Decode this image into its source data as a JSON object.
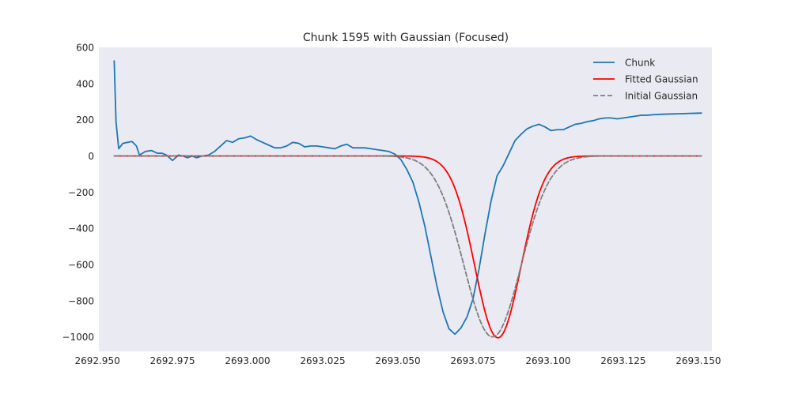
{
  "chart_data": {
    "type": "line",
    "title": "Chunk 1595 with Gaussian (Focused)",
    "xlabel": "",
    "ylabel": "",
    "xlim": [
      2692.9505,
      2693.1545
    ],
    "ylim": [
      -1080,
      600
    ],
    "xticks": [
      2692.95,
      2692.975,
      2693.0,
      2693.025,
      2693.05,
      2693.075,
      2693.1,
      2693.125,
      2693.15
    ],
    "xtick_labels": [
      "2692.950",
      "2692.975",
      "2693.000",
      "2693.025",
      "2693.050",
      "2693.075",
      "2693.100",
      "2693.125",
      "2693.150"
    ],
    "yticks": [
      600,
      400,
      200,
      0,
      -200,
      -400,
      -600,
      -800,
      -1000
    ],
    "ytick_labels": [
      "600",
      "400",
      "200",
      "0",
      "−200",
      "−400",
      "−600",
      "−800",
      "−1000"
    ],
    "grid": false,
    "background": "#eaeaf2",
    "legend_position": "top-right",
    "series": [
      {
        "name": "Chunk",
        "color": "#1f77b4",
        "style": "solid",
        "x": [
          2692.9556,
          2692.9562,
          2692.9571,
          2692.9585,
          2692.96,
          2692.9615,
          2692.963,
          2692.964,
          2692.966,
          2692.968,
          2692.97,
          2692.9715,
          2692.973,
          2692.975,
          2692.977,
          2692.9785,
          2692.98,
          2692.9815,
          2692.983,
          2692.985,
          2692.987,
          2692.989,
          2692.991,
          2692.993,
          2692.995,
          2692.997,
          2692.999,
          2693.001,
          2693.003,
          2693.005,
          2693.007,
          2693.009,
          2693.011,
          2693.013,
          2693.015,
          2693.017,
          2693.019,
          2693.021,
          2693.023,
          2693.025,
          2693.027,
          2693.029,
          2693.031,
          2693.033,
          2693.035,
          2693.037,
          2693.039,
          2693.041,
          2693.043,
          2693.045,
          2693.047,
          2693.049,
          2693.051,
          2693.053,
          2693.055,
          2693.057,
          2693.059,
          2693.061,
          2693.063,
          2693.065,
          2693.067,
          2693.069,
          2693.071,
          2693.073,
          2693.075,
          2693.077,
          2693.079,
          2693.081,
          2693.083,
          2693.085,
          2693.087,
          2693.089,
          2693.091,
          2693.093,
          2693.095,
          2693.097,
          2693.099,
          2693.101,
          2693.103,
          2693.105,
          2693.107,
          2693.109,
          2693.111,
          2693.113,
          2693.115,
          2693.117,
          2693.119,
          2693.121,
          2693.123,
          2693.125,
          2693.127,
          2693.129,
          2693.131,
          2693.133,
          2693.135,
          2693.137,
          2693.139,
          2693.141,
          2693.143,
          2693.145,
          2693.147,
          2693.149,
          2693.151
        ],
        "y": [
          525,
          190,
          40,
          70,
          75,
          80,
          55,
          5,
          25,
          30,
          15,
          15,
          5,
          -25,
          5,
          0,
          -10,
          0,
          -10,
          0,
          5,
          25,
          55,
          85,
          75,
          95,
          100,
          110,
          90,
          75,
          60,
          45,
          45,
          55,
          75,
          70,
          50,
          55,
          55,
          50,
          45,
          40,
          55,
          65,
          45,
          45,
          45,
          40,
          35,
          30,
          25,
          10,
          -20,
          -75,
          -145,
          -255,
          -390,
          -555,
          -720,
          -860,
          -955,
          -985,
          -950,
          -890,
          -790,
          -625,
          -430,
          -250,
          -110,
          -55,
          15,
          85,
          120,
          150,
          165,
          175,
          160,
          140,
          145,
          145,
          160,
          175,
          180,
          190,
          195,
          205,
          210,
          210,
          205,
          210,
          215,
          220,
          225,
          225,
          228,
          230,
          231,
          232,
          233,
          234,
          235,
          236,
          237
        ],
        "note": ""
      },
      {
        "name": "Fitted Gaussian",
        "color": "#ff0000",
        "style": "solid",
        "gaussian": {
          "amplitude": -1005,
          "center": 2693.0833,
          "sigma": 0.0077
        },
        "x_range": [
          2692.9556,
          2693.151
        ]
      },
      {
        "name": "Initial Gaussian",
        "color": "#7f7f7f",
        "style": "dashed",
        "gaussian": {
          "amplitude": -1000,
          "center": 2693.0815,
          "sigma": 0.0095
        },
        "x_range": [
          2692.9556,
          2693.151
        ]
      }
    ]
  }
}
